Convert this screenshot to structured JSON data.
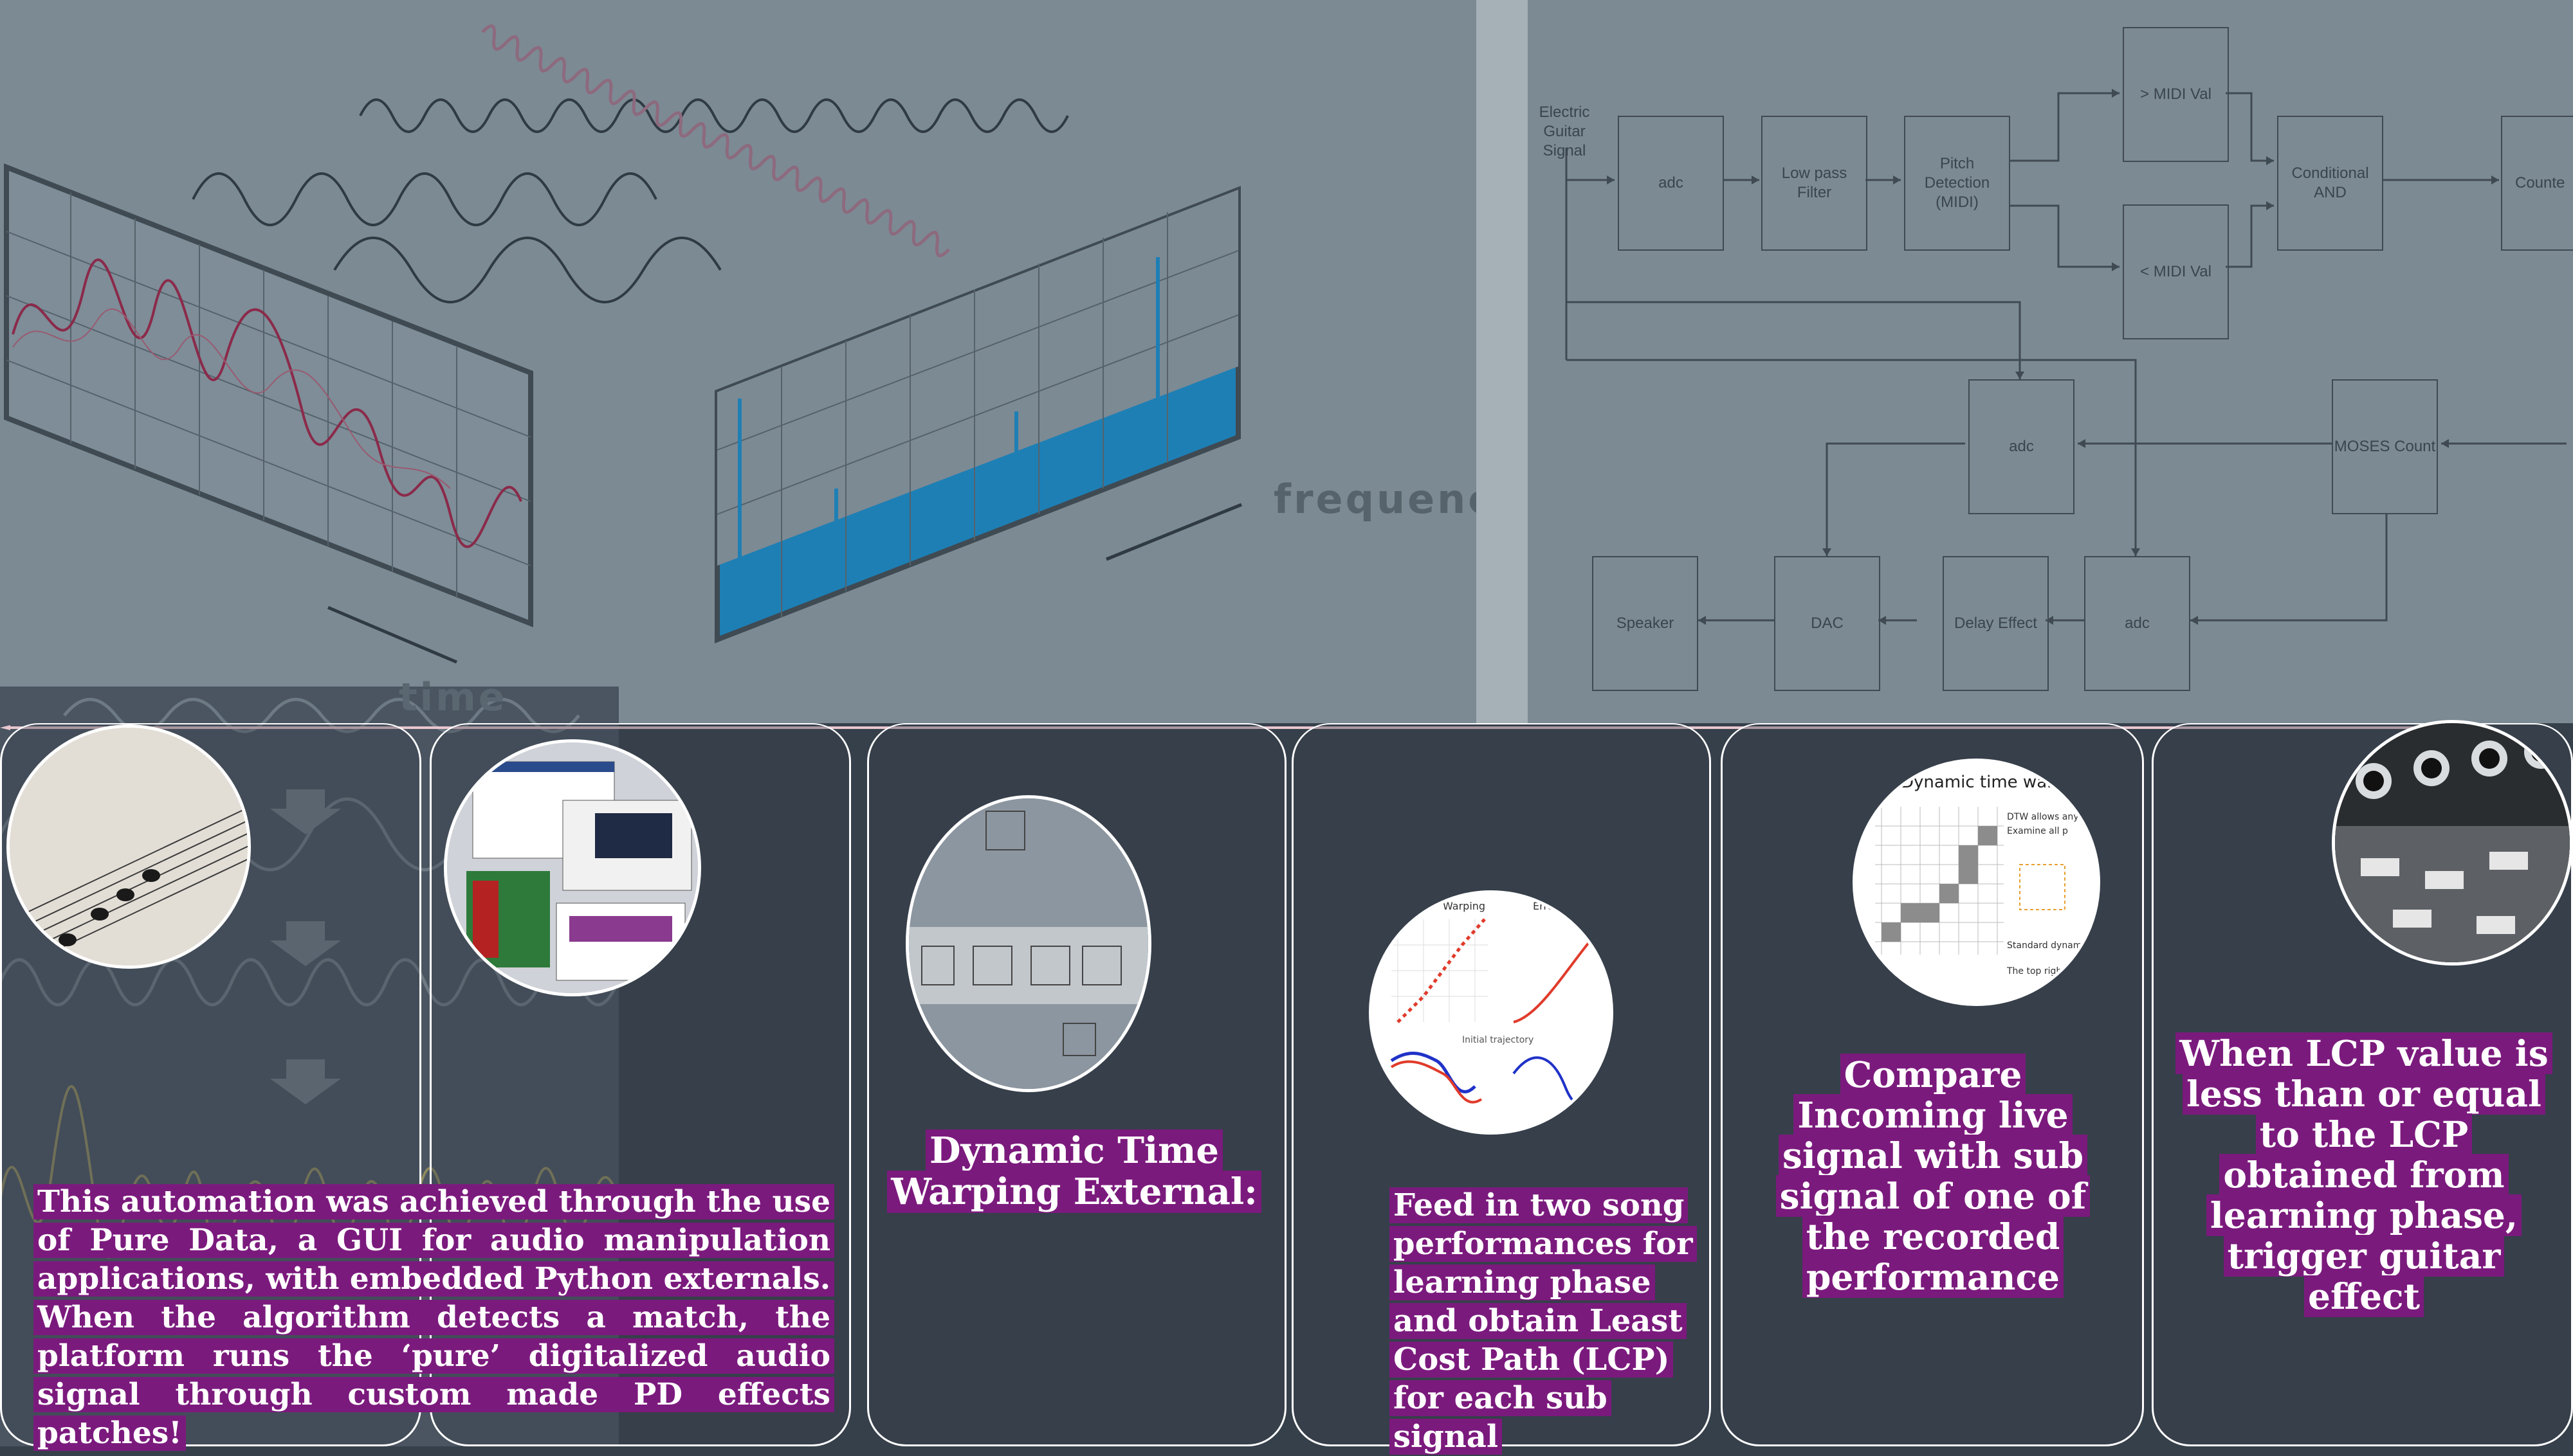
{
  "illustration": {
    "frequency_label": "frequency",
    "time_label": "time"
  },
  "flowchart": {
    "input_label": "Electric Guitar Signal",
    "nodes": {
      "adc_top": "adc",
      "low_pass": "Low pass Filter",
      "pitch": "Pitch Detection (MIDI)",
      "gt_midi": "> MIDI Val",
      "lt_midi": "< MIDI Val",
      "cond_and": "Conditional AND",
      "counter": "Counte",
      "adc_mid": "adc",
      "moses": "MOSES Count",
      "speaker": "Speaker",
      "dac": "DAC",
      "delay": "Delay Effect",
      "adc_bottom": "adc"
    }
  },
  "cards": {
    "intro_text": "This automation was achieved through the use of Pure Data, a GUI for audio manipulation applications, with embedded Python externals. When the algorithm detects a match, the platform runs the ‘pure’ digitalized audio signal through custom made PD effects patches!",
    "dtw_title": "Dynamic Time Warping External:",
    "feed_text": "Feed in two song performances for learning phase and obtain Least Cost Path (LCP) for each sub signal",
    "compare_text": "Compare Incoming live signal with sub signal of one of the recorded performance",
    "lcp_text": "When LCP value is less than or equal to the LCP obtained from learning phase, trigger guitar effect"
  },
  "thumbnails": {
    "dtw_slide_title": "Dynamic time warp",
    "dtw_bullets": [
      "DTW allows any s",
      "Examine all p",
      "Standard dynamic pr to fill in the table",
      "The top right cell results"
    ],
    "plot_titles": [
      "Warping",
      "Error"
    ],
    "plot_caption": "Initial trajectory"
  },
  "colors": {
    "background": "#36404b",
    "highlight": "#7b1a7d",
    "header_panel": "#7c8a94",
    "card_border": "#ffffff"
  }
}
